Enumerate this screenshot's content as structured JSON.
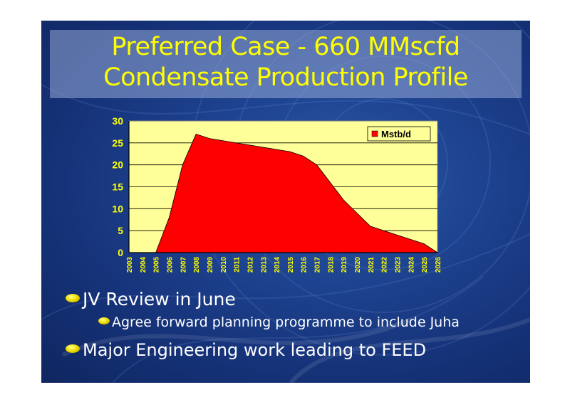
{
  "slide": {
    "title_line1": "Preferred Case - 660 MMscfd",
    "title_line2": "Condensate Production Profile",
    "bullets": [
      {
        "text": "JV Review in June",
        "level": 1
      },
      {
        "text": "Agree forward planning programme to include Juha",
        "level": 2
      },
      {
        "text": "Major Engineering work leading to FEED",
        "level": 1
      }
    ]
  },
  "colors": {
    "background": "#1e4390",
    "title_text": "#ffff00",
    "plot_area": "#ffff99",
    "series_fill": "#ff0000",
    "axis_labels": "#ffff00",
    "bullet_text": "#ffffff"
  },
  "chart_data": {
    "type": "area",
    "categories": [
      "2003",
      "2004",
      "2005",
      "2006",
      "2007",
      "2008",
      "2009",
      "2010",
      "2011",
      "2012",
      "2013",
      "2014",
      "2015",
      "2016",
      "2017",
      "2018",
      "2019",
      "2020",
      "2021",
      "2022",
      "2023",
      "2024",
      "2025",
      "2026"
    ],
    "series": [
      {
        "name": "Mstb/d",
        "values": [
          0,
          0,
          0,
          8,
          20,
          27,
          26,
          25.5,
          25,
          24.5,
          24,
          23.5,
          23,
          22,
          20,
          16,
          12,
          9,
          6,
          5,
          4,
          3,
          2,
          0
        ]
      }
    ],
    "ylim": [
      0,
      30
    ],
    "yticks": [
      0,
      5,
      10,
      15,
      20,
      25,
      30
    ],
    "grid": "horizontal",
    "legend": "top-right",
    "title": "",
    "xlabel": "",
    "ylabel": ""
  }
}
